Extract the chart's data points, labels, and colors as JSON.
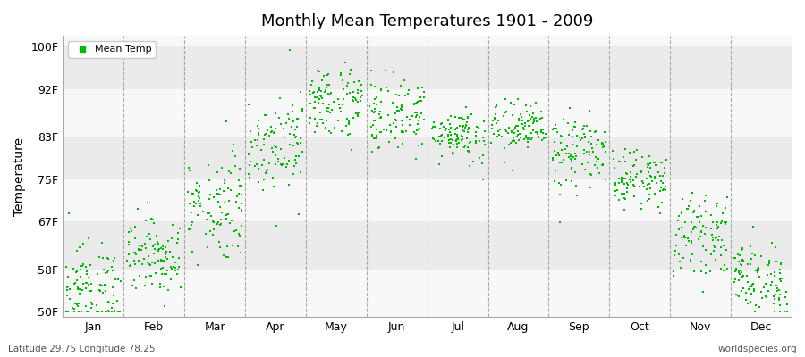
{
  "title": "Monthly Mean Temperatures 1901 - 2009",
  "ylabel": "Temperature",
  "yticks": [
    50,
    58,
    67,
    75,
    83,
    92,
    100
  ],
  "ytick_labels": [
    "50F",
    "58F",
    "67F",
    "75F",
    "83F",
    "92F",
    "100F"
  ],
  "ylim": [
    49,
    102
  ],
  "months": [
    "Jan",
    "Feb",
    "Mar",
    "Apr",
    "May",
    "Jun",
    "Jul",
    "Aug",
    "Sep",
    "Oct",
    "Nov",
    "Dec"
  ],
  "legend_label": "Mean Temp",
  "marker_color": "#00bb00",
  "marker": "s",
  "marker_size": 2.0,
  "footer_left": "Latitude 29.75 Longitude 78.25",
  "footer_right": "worldspecies.org",
  "bg_color": "#ffffff",
  "band_color_light": "#ebebeb",
  "band_color_white": "#f8f8f8",
  "grid_color": "#888888",
  "month_means": [
    54.0,
    60.5,
    70.0,
    82.0,
    89.5,
    87.0,
    83.5,
    84.5,
    80.0,
    75.0,
    64.5,
    56.0
  ],
  "month_spreads": [
    4.5,
    3.5,
    5.0,
    4.5,
    3.5,
    3.5,
    2.5,
    2.5,
    3.5,
    2.5,
    3.5,
    3.5
  ],
  "n_points": 109
}
